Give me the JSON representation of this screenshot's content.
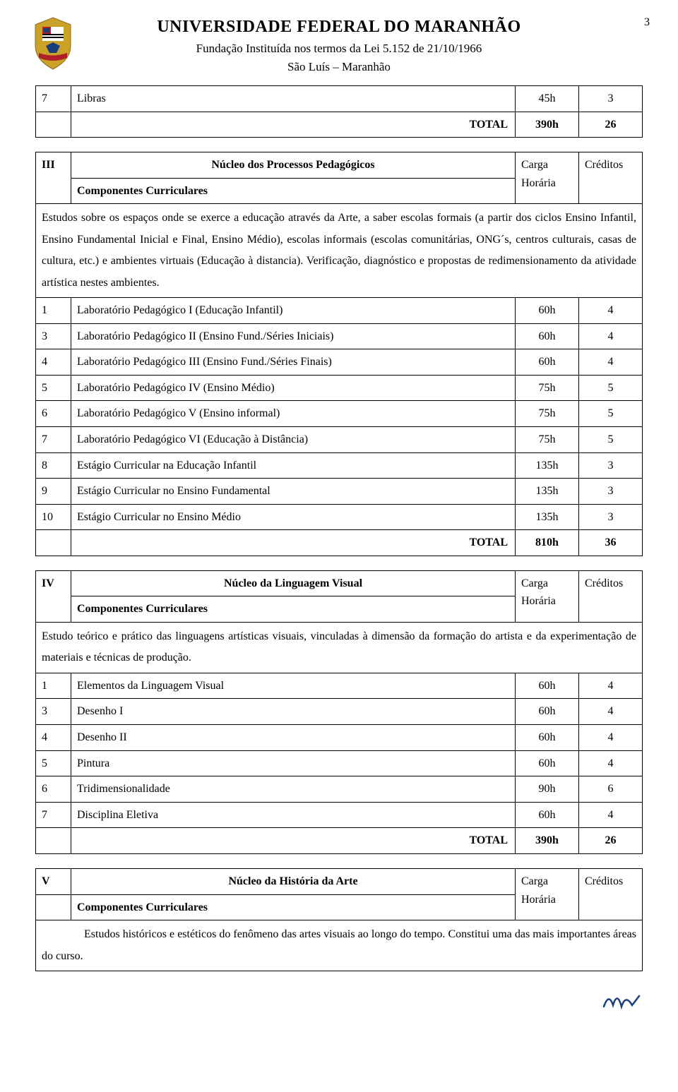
{
  "page_number": "3",
  "header": {
    "title": "UNIVERSIDADE FEDERAL DO MARANHÃO",
    "subtitle": "Fundação Instituída nos termos da Lei 5.152 de 21/10/1966",
    "location": "São Luís – Maranhão"
  },
  "table_prev": {
    "row": {
      "num": "7",
      "name": "Libras",
      "carga": "45h",
      "cred": "3"
    },
    "total_label": "TOTAL",
    "total_carga": "390h",
    "total_cred": "26"
  },
  "section3": {
    "roman": "III",
    "title": "Núcleo dos Processos Pedagógicos",
    "comp_label": "Componentes Curriculares",
    "carga_label": "Carga Horária",
    "cred_label": "Créditos",
    "description": "Estudos sobre os espaços onde se exerce a educação através da Arte, a saber escolas formais (a partir dos ciclos Ensino Infantil, Ensino Fundamental Inicial e Final, Ensino Médio), escolas informais (escolas comunitárias, ONG´s, centros culturais, casas de cultura, etc.) e ambientes virtuais (Educação à distancia). Verificação, diagnóstico e propostas de redimensionamento da atividade artística nestes ambientes.",
    "rows": [
      {
        "num": "1",
        "name": "Laboratório Pedagógico I (Educação Infantil)",
        "carga": "60h",
        "cred": "4"
      },
      {
        "num": "3",
        "name": "Laboratório Pedagógico II (Ensino Fund./Séries Iniciais)",
        "carga": "60h",
        "cred": "4"
      },
      {
        "num": "4",
        "name": "Laboratório Pedagógico III (Ensino Fund./Séries Finais)",
        "carga": "60h",
        "cred": "4"
      },
      {
        "num": "5",
        "name": "Laboratório Pedagógico IV (Ensino Médio)",
        "carga": "75h",
        "cred": "5"
      },
      {
        "num": "6",
        "name": "Laboratório Pedagógico V (Ensino informal)",
        "carga": "75h",
        "cred": "5"
      },
      {
        "num": "7",
        "name": "Laboratório Pedagógico VI (Educação à Distância)",
        "carga": "75h",
        "cred": "5"
      },
      {
        "num": "8",
        "name": "Estágio Curricular na Educação Infantil",
        "carga": "135h",
        "cred": "3"
      },
      {
        "num": "9",
        "name": "Estágio Curricular no Ensino Fundamental",
        "carga": "135h",
        "cred": "3"
      },
      {
        "num": "10",
        "name": "Estágio Curricular no Ensino Médio",
        "carga": "135h",
        "cred": "3"
      }
    ],
    "total_label": "TOTAL",
    "total_carga": "810h",
    "total_cred": "36"
  },
  "section4": {
    "roman": "IV",
    "title": "Núcleo da Linguagem Visual",
    "comp_label": "Componentes Curriculares",
    "carga_label": "Carga Horária",
    "cred_label": "Créditos",
    "description": "Estudo teórico e prático das linguagens artísticas visuais, vinculadas à dimensão da formação do artista e da experimentação de materiais e técnicas de produção.",
    "rows": [
      {
        "num": "1",
        "name": "Elementos da Linguagem Visual",
        "carga": "60h",
        "cred": "4"
      },
      {
        "num": "3",
        "name": "Desenho I",
        "carga": "60h",
        "cred": "4"
      },
      {
        "num": "4",
        "name": "Desenho II",
        "carga": "60h",
        "cred": "4"
      },
      {
        "num": "5",
        "name": "Pintura",
        "carga": "60h",
        "cred": "4"
      },
      {
        "num": "6",
        "name": "Tridimensionalidade",
        "carga": "90h",
        "cred": "6"
      },
      {
        "num": "7",
        "name": "Disciplina Eletiva",
        "carga": "60h",
        "cred": "4"
      }
    ],
    "total_label": "TOTAL",
    "total_carga": "390h",
    "total_cred": "26"
  },
  "section5": {
    "roman": "V",
    "title": "Núcleo da História da Arte",
    "comp_label": "Componentes Curriculares",
    "carga_label": "Carga Horária",
    "cred_label": "Créditos",
    "description": "Estudos históricos e estéticos do fenômeno das artes visuais ao longo do tempo. Constitui uma das mais importantes áreas do curso."
  },
  "logo_colors": {
    "shield": "#c9a227",
    "flag_blue": "#1a3d7c",
    "flag_red": "#b01e28",
    "ribbon": "#b01e28"
  }
}
